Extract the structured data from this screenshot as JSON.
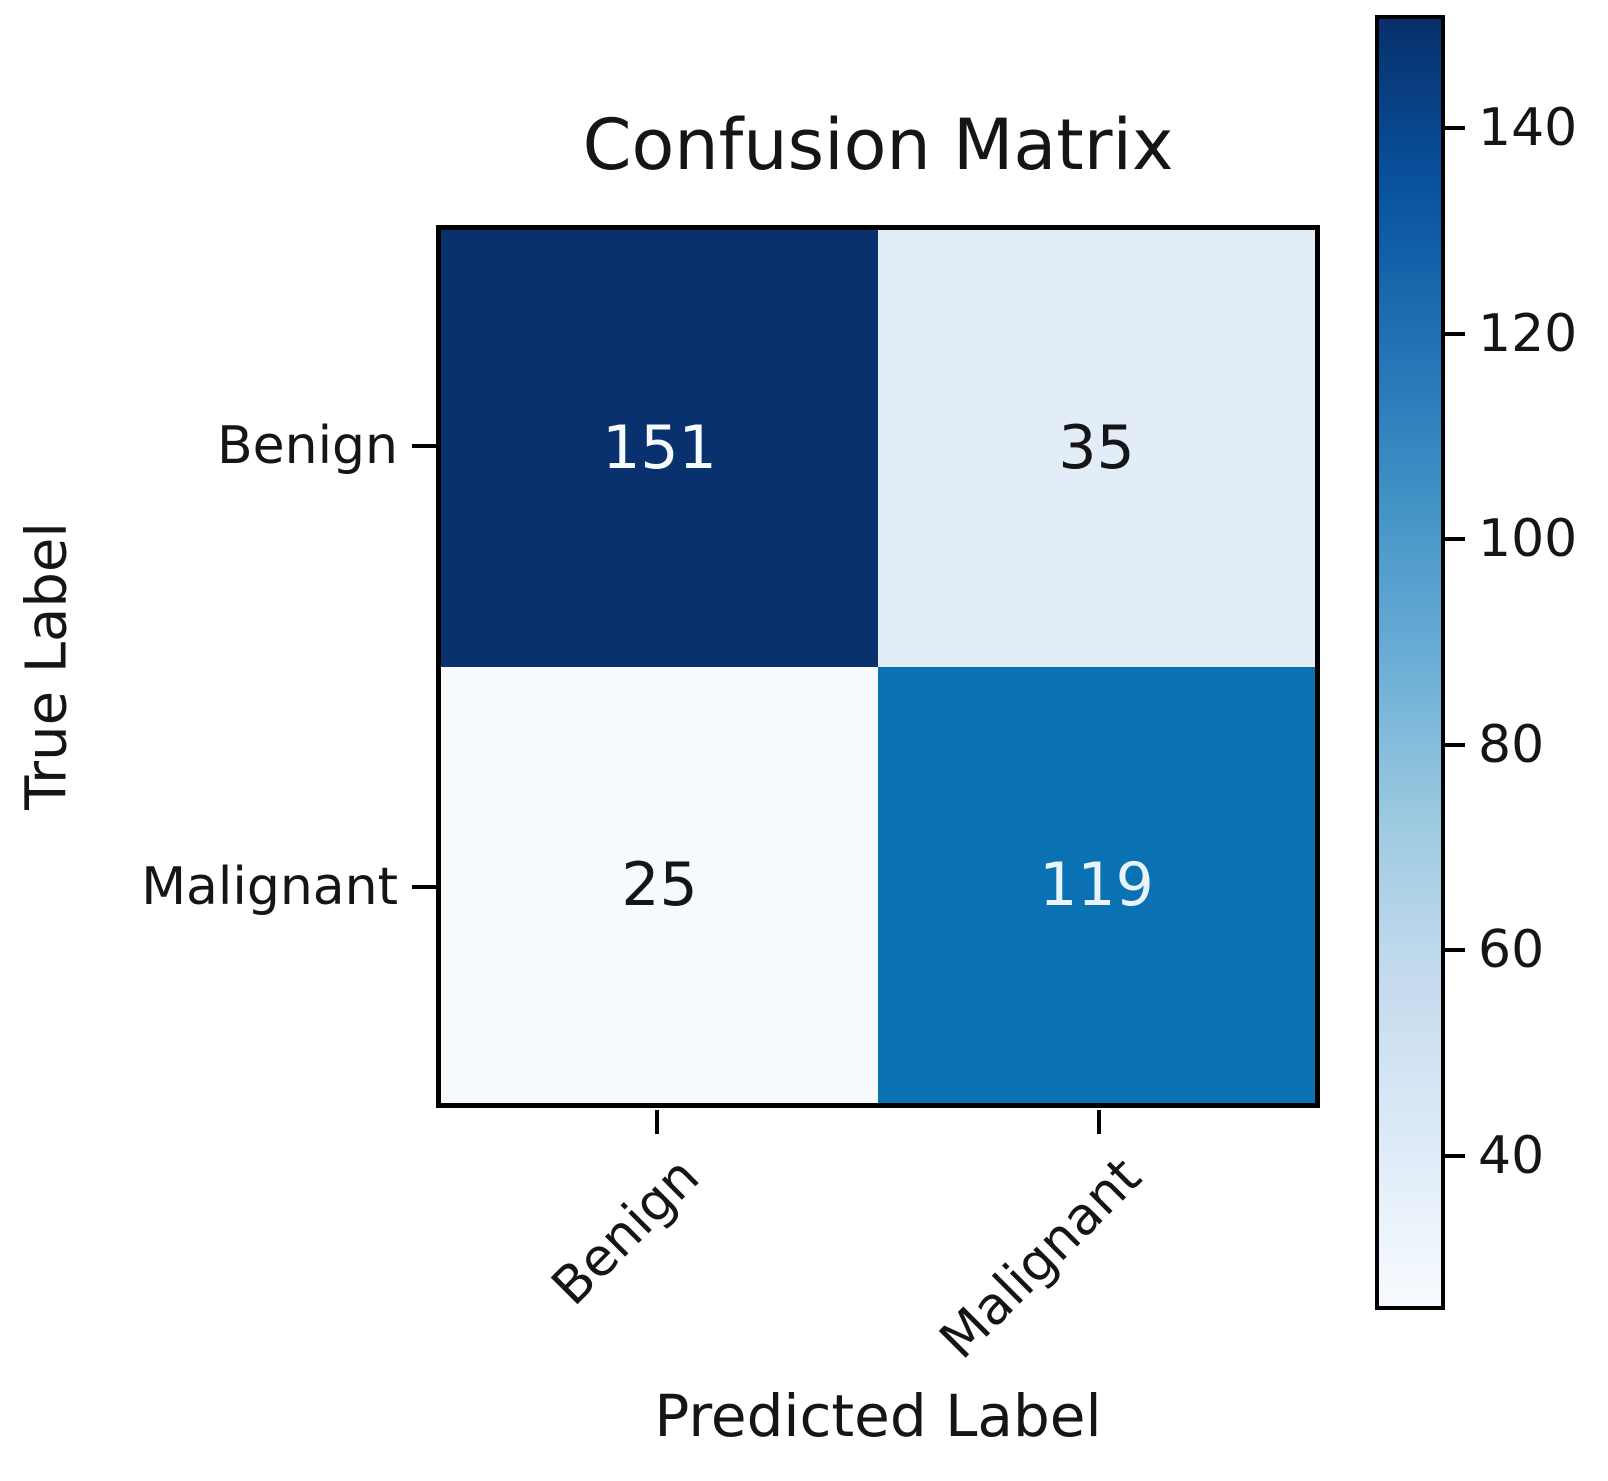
{
  "chart_data": {
    "type": "heatmap",
    "title": "Confusion Matrix",
    "xlabel": "Predicted Label",
    "ylabel": "True Label",
    "x_tick_labels": [
      "Benign",
      "Malignant"
    ],
    "y_tick_labels": [
      "Benign",
      "Malignant"
    ],
    "matrix": [
      [
        151,
        35
      ],
      [
        25,
        119
      ]
    ],
    "cells": [
      {
        "value": "151",
        "fill": "#09316e",
        "text_color": "#f7fbff"
      },
      {
        "value": "35",
        "fill": "#e2edf8",
        "text_color": "#151515"
      },
      {
        "value": "25",
        "fill": "#f6fafd",
        "text_color": "#151515"
      },
      {
        "value": "119",
        "fill": "#0a71b3",
        "text_color": "#e8f3fa"
      }
    ],
    "colormap": "Blues",
    "vmin": 25,
    "vmax": 151,
    "colorbar_ticks": [
      40,
      60,
      80,
      100,
      120,
      140
    ],
    "colormap_stops_top_to_bottom": [
      "#08306b",
      "#08519c",
      "#2171b5",
      "#4292c6",
      "#6baed6",
      "#9ecae1",
      "#c6dbef",
      "#deebf7",
      "#f7fbff"
    ],
    "axis_color": "#000000",
    "background": "#ffffff"
  }
}
